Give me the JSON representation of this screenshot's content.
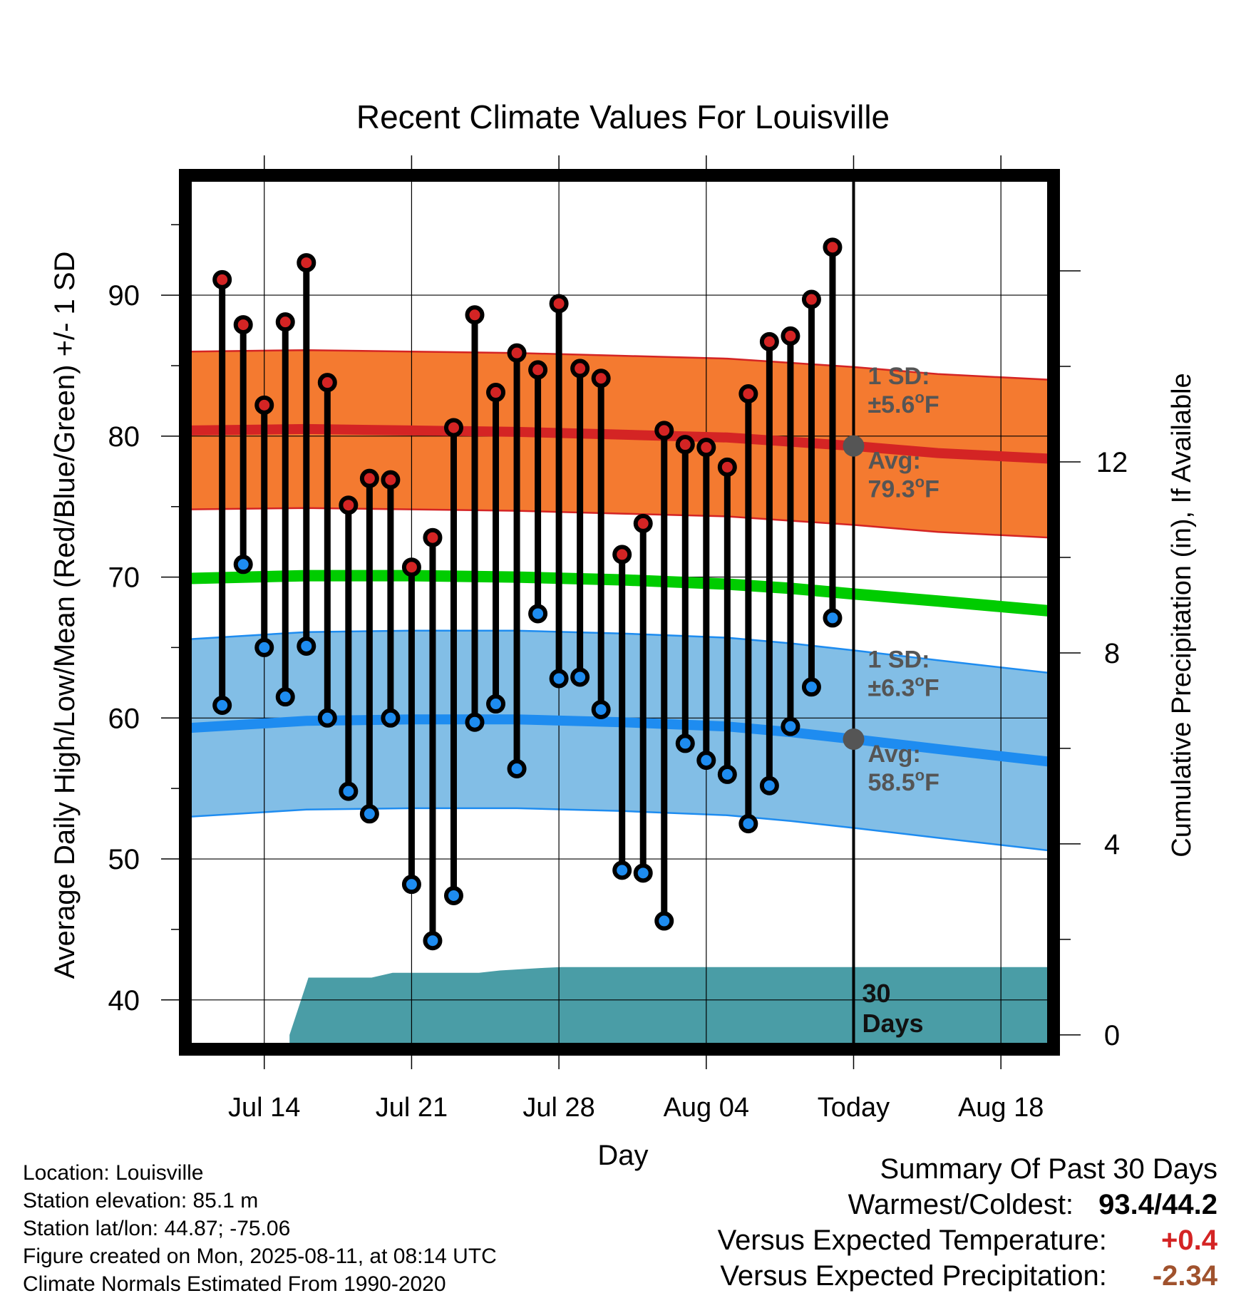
{
  "chart_data": {
    "type": "line",
    "title": "Recent Climate Values For Louisville",
    "xlabel": "Day",
    "ylabel": "Average Daily High/Low/Mean (Red/Blue/Green) +/- 1 SD",
    "y2label": "Cumulative Precipitation (in), If Available",
    "ylim": [
      36.5,
      98.5
    ],
    "y2lim": [
      -0.3,
      18
    ],
    "y_ticks": [
      40,
      50,
      60,
      70,
      80,
      90
    ],
    "y2_ticks": [
      0,
      4,
      8,
      12
    ],
    "x_ticks": [
      {
        "day": 3,
        "label": "Jul 14"
      },
      {
        "day": 10,
        "label": "Jul 21"
      },
      {
        "day": 17,
        "label": "Jul 28"
      },
      {
        "day": 24,
        "label": "Aug 04"
      },
      {
        "day": 31,
        "label": "Today"
      },
      {
        "day": 38,
        "label": "Aug 18"
      }
    ],
    "xlim": [
      -0.75,
      40.5
    ],
    "today": 31,
    "grid": true,
    "days": [
      "Jul 12",
      "Jul 13",
      "Jul 14",
      "Jul 15",
      "Jul 16",
      "Jul 17",
      "Jul 18",
      "Jul 19",
      "Jul 20",
      "Jul 21",
      "Jul 22",
      "Jul 23",
      "Jul 24",
      "Jul 25",
      "Jul 26",
      "Jul 27",
      "Jul 28",
      "Jul 29",
      "Jul 30",
      "Jul 31",
      "Aug 01",
      "Aug 02",
      "Aug 03",
      "Aug 04",
      "Aug 05",
      "Aug 06",
      "Aug 07",
      "Aug 08",
      "Aug 09",
      "Aug 10"
    ],
    "observed_high": [
      91.1,
      87.9,
      82.2,
      88.1,
      92.3,
      83.8,
      75.1,
      77.0,
      76.9,
      70.7,
      72.8,
      80.6,
      88.6,
      83.1,
      85.9,
      84.7,
      89.4,
      84.8,
      84.1,
      71.6,
      73.8,
      80.4,
      79.4,
      79.2,
      77.8,
      83.0,
      86.7,
      87.1,
      89.7,
      93.4
    ],
    "observed_low": [
      60.9,
      70.9,
      65.0,
      61.5,
      65.1,
      60.0,
      54.8,
      53.2,
      60.0,
      48.2,
      44.2,
      47.4,
      59.7,
      61.0,
      56.4,
      67.4,
      62.8,
      62.9,
      60.6,
      49.2,
      49.0,
      45.6,
      58.2,
      57.0,
      56.0,
      52.5,
      55.2,
      59.4,
      62.2,
      67.1
    ],
    "normal_days": [
      -0.5,
      5,
      10,
      15,
      20,
      25,
      28,
      31,
      35,
      40.3
    ],
    "normal_high": [
      80.4,
      80.5,
      80.4,
      80.3,
      80.1,
      79.9,
      79.6,
      79.3,
      78.8,
      78.4
    ],
    "normal_high_sd": 5.6,
    "normal_low": [
      59.3,
      59.8,
      59.9,
      59.9,
      59.7,
      59.4,
      59.0,
      58.5,
      57.8,
      56.9
    ],
    "normal_low_sd": 6.3,
    "normal_mean": [
      69.9,
      70.1,
      70.1,
      70.0,
      69.8,
      69.5,
      69.2,
      68.8,
      68.3,
      67.6
    ],
    "precip_days": [
      4.2,
      5.1,
      7.1,
      8.1,
      9.1,
      10.2,
      13.2,
      14.2,
      16.1,
      17.1,
      30.9,
      40.3
    ],
    "cumulative_precip": [
      0.0,
      1.2,
      1.2,
      1.2,
      1.3,
      1.3,
      1.3,
      1.35,
      1.4,
      1.42,
      1.42,
      1.42
    ],
    "annotations": {
      "high_sd_line1": "1 SD:",
      "high_sd_line2": "±5.6",
      "high_avg_line1": "Avg:",
      "high_avg_line2": "79.3",
      "low_sd_line1": "1 SD:",
      "low_sd_line2": "±6.3",
      "low_avg_line1": "Avg:",
      "low_avg_line2": "58.5",
      "unit_sup": "o",
      "unit": "F",
      "days_line1": "30",
      "days_line2": "Days"
    },
    "colors": {
      "high_band": "#F47A30",
      "high_line": "#D42424",
      "low_band": "#82BEE6",
      "low_line": "#1E8CF0",
      "mean_line": "#00CC00",
      "precip": "#4A9DA6",
      "avg_marker": "#555555",
      "annotation_text": "#555555",
      "high_dot": "#D42424",
      "low_dot": "#1E8CF0"
    }
  },
  "footer": {
    "location": "Location: Louisville",
    "elevation": "Station elevation: 85.1 m",
    "latlon": "Station lat/lon: 44.87; -75.06",
    "created": "Figure created on Mon, 2025-08-11, at 08:14 UTC",
    "normals": "Climate Normals Estimated From 1990-2020"
  },
  "summary": {
    "title": "Summary Of Past 30 Days",
    "warm_cold_label": "Warmest/Coldest:",
    "warm_cold_value": "93.4/44.2",
    "temp_label": "Versus Expected Temperature:",
    "temp_value": "+0.4",
    "temp_color": "#D42424",
    "precip_label": "Versus Expected Precipitation:",
    "precip_value": "-2.34",
    "precip_color": "#A0522D"
  }
}
